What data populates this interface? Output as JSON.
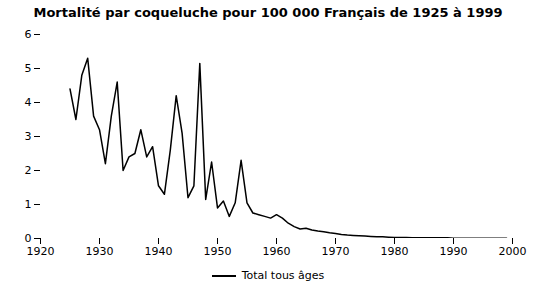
{
  "chart_data": {
    "type": "line",
    "title": "Mortalité par coqueluche pour 100 000 Français de 1925 à 1999",
    "x": [
      1925,
      1926,
      1927,
      1928,
      1929,
      1930,
      1931,
      1932,
      1933,
      1934,
      1935,
      1936,
      1937,
      1938,
      1939,
      1940,
      1941,
      1942,
      1943,
      1944,
      1945,
      1946,
      1947,
      1948,
      1949,
      1950,
      1951,
      1952,
      1953,
      1954,
      1955,
      1956,
      1957,
      1958,
      1959,
      1960,
      1961,
      1962,
      1963,
      1964,
      1965,
      1966,
      1967,
      1968,
      1969,
      1970,
      1971,
      1972,
      1973,
      1974,
      1975,
      1976,
      1977,
      1978,
      1979,
      1980,
      1981,
      1982,
      1983,
      1984,
      1985,
      1986,
      1987,
      1988,
      1989,
      1990,
      1991,
      1992,
      1993,
      1994,
      1995,
      1996,
      1997,
      1998,
      1999
    ],
    "series": [
      {
        "name": "Total tous âges",
        "color": "#000000",
        "values": [
          4.4,
          3.5,
          4.8,
          5.3,
          3.6,
          3.2,
          2.2,
          3.6,
          4.6,
          2.0,
          2.4,
          2.5,
          3.2,
          2.4,
          2.7,
          1.55,
          1.3,
          2.6,
          4.2,
          3.1,
          1.2,
          1.55,
          5.15,
          1.15,
          2.25,
          0.9,
          1.1,
          0.65,
          1.05,
          2.3,
          1.05,
          0.75,
          0.7,
          0.65,
          0.6,
          0.7,
          0.6,
          0.45,
          0.35,
          0.28,
          0.3,
          0.25,
          0.22,
          0.2,
          0.17,
          0.15,
          0.12,
          0.1,
          0.09,
          0.08,
          0.07,
          0.06,
          0.05,
          0.05,
          0.04,
          0.03,
          0.03,
          0.03,
          0.02,
          0.02,
          0.02,
          0.02,
          0.02,
          0.02,
          0.02,
          0.01,
          0.01,
          0.01,
          0.01,
          0.01,
          0.01,
          0.01,
          0.01,
          0.01,
          0.01
        ]
      }
    ],
    "xlim": [
      1920,
      2000
    ],
    "ylim": [
      0,
      6
    ],
    "xticks": [
      1920,
      1930,
      1940,
      1950,
      1960,
      1970,
      1980,
      1990,
      2000
    ],
    "yticks": [
      0,
      1,
      2,
      3,
      4,
      5,
      6
    ],
    "grid": false,
    "legend": "bottom"
  }
}
